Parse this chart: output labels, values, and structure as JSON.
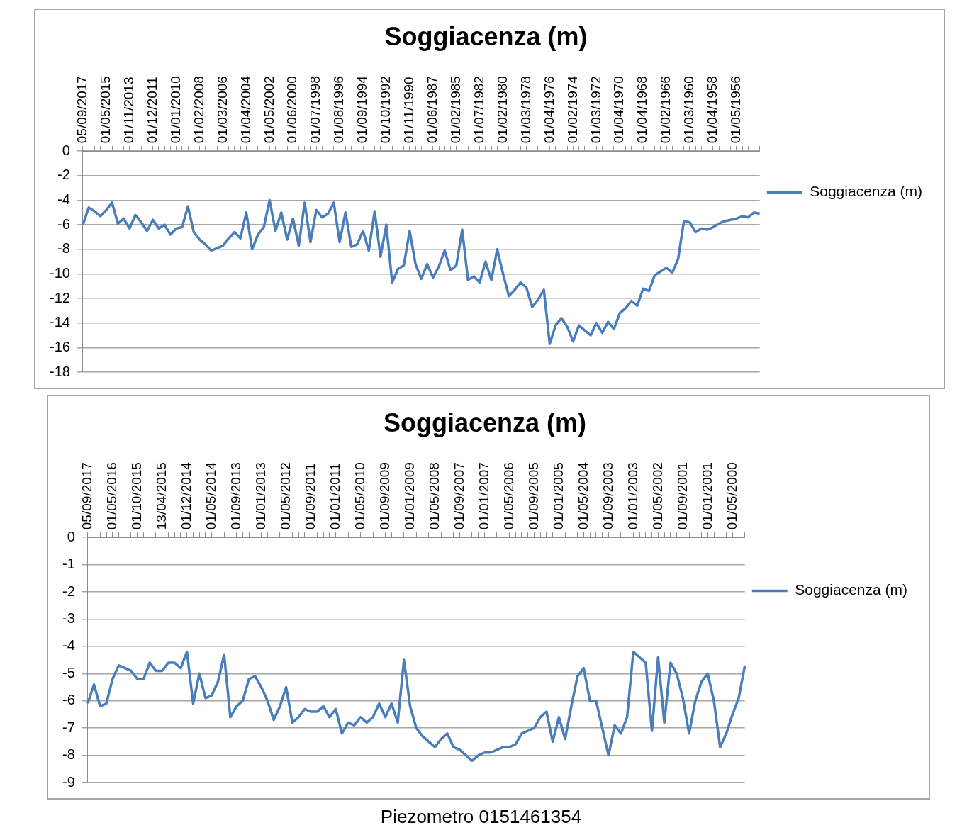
{
  "chart_data": [
    {
      "type": "line",
      "title": "Soggiacenza (m)",
      "categories": [
        "05/09/2017",
        null,
        null,
        null,
        "01/05/2015",
        null,
        null,
        null,
        "01/11/2013",
        null,
        null,
        null,
        "01/12/2011",
        null,
        null,
        null,
        "01/01/2010",
        null,
        null,
        null,
        "01/02/2008",
        null,
        null,
        null,
        "01/03/2006",
        null,
        null,
        null,
        "01/04/2004",
        null,
        null,
        null,
        "01/05/2002",
        null,
        null,
        null,
        "01/06/2000",
        null,
        null,
        null,
        "01/07/1998",
        null,
        null,
        null,
        "01/08/1996",
        null,
        null,
        null,
        "01/09/1994",
        null,
        null,
        null,
        "01/10/1992",
        null,
        null,
        null,
        "01/11/1990",
        null,
        null,
        null,
        "01/06/1987",
        null,
        null,
        null,
        "01/02/1985",
        null,
        null,
        null,
        "01/07/1982",
        null,
        null,
        null,
        "01/02/1980",
        null,
        null,
        null,
        "01/03/1978",
        null,
        null,
        null,
        "01/04/1976",
        null,
        null,
        null,
        "01/02/1974",
        null,
        null,
        null,
        "01/03/1972",
        null,
        null,
        null,
        "01/04/1970",
        null,
        null,
        null,
        "01/04/1968",
        null,
        null,
        null,
        "01/02/1966",
        null,
        null,
        null,
        "01/03/1960",
        null,
        null,
        null,
        "01/04/1958",
        null,
        null,
        null,
        "01/05/1956",
        null,
        null,
        null,
        null
      ],
      "series": [
        {
          "name": "Soggiacenza (m)",
          "color": "#4a7ebb",
          "values": [
            -6.0,
            -4.6,
            -4.9,
            -5.3,
            -4.8,
            -4.2,
            -5.9,
            -5.5,
            -6.3,
            -5.2,
            -5.8,
            -6.5,
            -5.6,
            -6.3,
            -6.0,
            -6.8,
            -6.3,
            -6.2,
            -4.5,
            -6.6,
            -7.2,
            -7.6,
            -8.1,
            -7.9,
            -7.7,
            -7.1,
            -6.6,
            -7.1,
            -5.0,
            -8.0,
            -6.8,
            -6.2,
            -4.0,
            -6.5,
            -5.0,
            -7.2,
            -5.5,
            -7.7,
            -4.2,
            -7.4,
            -4.8,
            -5.4,
            -5.1,
            -4.2,
            -7.4,
            -5.0,
            -7.8,
            -7.6,
            -6.5,
            -8.1,
            -4.9,
            -8.6,
            -6.0,
            -10.7,
            -9.6,
            -9.3,
            -6.5,
            -9.2,
            -10.4,
            -9.2,
            -10.3,
            -9.4,
            -8.1,
            -9.7,
            -9.3,
            -6.4,
            -10.5,
            -10.2,
            -10.7,
            -9.0,
            -10.5,
            -8.0,
            -10.0,
            -11.8,
            -11.3,
            -10.7,
            -11.1,
            -12.7,
            -12.1,
            -11.3,
            -15.7,
            -14.2,
            -13.6,
            -14.3,
            -15.5,
            -14.2,
            -14.6,
            -15.0,
            -14.0,
            -14.8,
            -13.9,
            -14.5,
            -13.2,
            -12.8,
            -12.2,
            -12.6,
            -11.2,
            -11.4,
            -10.1,
            -9.8,
            -9.5,
            -9.9,
            -8.8,
            -5.7,
            -5.8,
            -6.6,
            -6.3,
            -6.4,
            -6.2,
            -5.9,
            -5.7,
            -5.6,
            -5.5,
            -5.3,
            -5.4,
            -5.0,
            -5.1
          ]
        }
      ],
      "ylim": [
        -18,
        0
      ],
      "yticks": [
        0,
        -2,
        -4,
        -6,
        -8,
        -10,
        -12,
        -14,
        -16,
        -18
      ],
      "grid": "y",
      "legend": "right",
      "marker": "none",
      "line_style": "solid"
    },
    {
      "type": "line",
      "title": "Soggiacenza (m)",
      "categories": [
        "05/09/2017",
        null,
        null,
        null,
        "01/05/2016",
        null,
        null,
        null,
        "01/10/2015",
        null,
        null,
        null,
        "13/04/2015",
        null,
        null,
        null,
        "01/12/2014",
        null,
        null,
        null,
        "01/05/2014",
        null,
        null,
        null,
        "01/09/2013",
        null,
        null,
        null,
        "01/01/2013",
        null,
        null,
        null,
        "01/05/2012",
        null,
        null,
        null,
        "01/09/2011",
        null,
        null,
        null,
        "01/01/2011",
        null,
        null,
        null,
        "01/05/2010",
        null,
        null,
        null,
        "01/09/2009",
        null,
        null,
        null,
        "01/01/2009",
        null,
        null,
        null,
        "01/05/2008",
        null,
        null,
        null,
        "01/09/2007",
        null,
        null,
        null,
        "01/01/2007",
        null,
        null,
        null,
        "01/05/2006",
        null,
        null,
        null,
        "01/09/2005",
        null,
        null,
        null,
        "01/01/2005",
        null,
        null,
        null,
        "01/05/2004",
        null,
        null,
        null,
        "01/09/2003",
        null,
        null,
        null,
        "01/01/2003",
        null,
        null,
        null,
        "01/05/2002",
        null,
        null,
        null,
        "01/09/2001",
        null,
        null,
        null,
        "01/01/2001",
        null,
        null,
        null,
        "01/05/2000",
        null,
        null
      ],
      "series": [
        {
          "name": "Soggiacenza (m)",
          "color": "#4a7ebb",
          "values": [
            -6.1,
            -5.4,
            -6.2,
            -6.1,
            -5.2,
            -4.7,
            -4.8,
            -4.9,
            -5.2,
            -5.2,
            -4.6,
            -4.9,
            -4.9,
            -4.6,
            -4.6,
            -4.8,
            -4.2,
            -6.1,
            -5.0,
            -5.9,
            -5.8,
            -5.3,
            -4.3,
            -6.6,
            -6.2,
            -6.0,
            -5.2,
            -5.1,
            -5.5,
            -6.0,
            -6.7,
            -6.2,
            -5.5,
            -6.8,
            -6.6,
            -6.3,
            -6.4,
            -6.4,
            -6.2,
            -6.6,
            -6.3,
            -7.2,
            -6.8,
            -6.9,
            -6.6,
            -6.8,
            -6.6,
            -6.1,
            -6.6,
            -6.1,
            -6.8,
            -4.5,
            -6.2,
            -7.0,
            -7.3,
            -7.5,
            -7.7,
            -7.4,
            -7.2,
            -7.7,
            -7.8,
            -8.0,
            -8.2,
            -8.0,
            -7.9,
            -7.9,
            -7.8,
            -7.7,
            -7.7,
            -7.6,
            -7.2,
            -7.1,
            -7.0,
            -6.6,
            -6.4,
            -7.5,
            -6.6,
            -7.4,
            -6.2,
            -5.1,
            -4.8,
            -6.0,
            -6.0,
            -7.0,
            -8.0,
            -6.9,
            -7.2,
            -6.6,
            -4.2,
            -4.4,
            -4.6,
            -7.1,
            -4.4,
            -6.8,
            -4.6,
            -5.0,
            -5.9,
            -7.2,
            -6.0,
            -5.3,
            -5.0,
            -6.0,
            -7.7,
            -7.2,
            -6.5,
            -5.9,
            -4.7
          ]
        }
      ],
      "ylim": [
        -9,
        0
      ],
      "yticks": [
        0,
        -1,
        -2,
        -3,
        -4,
        -5,
        -6,
        -7,
        -8,
        -9
      ],
      "grid": "y",
      "legend": "right",
      "marker": "none",
      "line_style": "solid",
      "annotations": [
        "Piezometro 0151461354"
      ]
    }
  ]
}
